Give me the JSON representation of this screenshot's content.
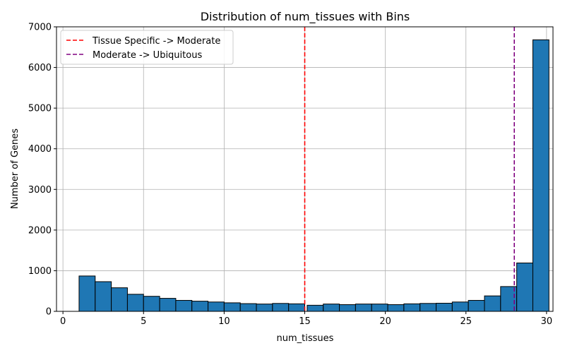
{
  "chart_data": {
    "type": "bar",
    "title": "Distribution of num_tissues with Bins",
    "xlabel": "num_tissues",
    "ylabel": "Number of Genes",
    "xlim": [
      -0.4,
      30.4
    ],
    "ylim": [
      0,
      7000
    ],
    "xticks": [
      0,
      5,
      10,
      15,
      20,
      25,
      30
    ],
    "yticks": [
      0,
      1000,
      2000,
      3000,
      4000,
      5000,
      6000,
      7000
    ],
    "grid": true,
    "legend_position": "upper-left",
    "bar_color": "#1f77b4",
    "bins": [
      {
        "x0": 1,
        "x1": 2,
        "value": 870
      },
      {
        "x0": 2,
        "x1": 3,
        "value": 730
      },
      {
        "x0": 3,
        "x1": 4,
        "value": 580
      },
      {
        "x0": 4,
        "x1": 5,
        "value": 420
      },
      {
        "x0": 5,
        "x1": 6,
        "value": 370
      },
      {
        "x0": 6,
        "x1": 7,
        "value": 320
      },
      {
        "x0": 7,
        "x1": 8,
        "value": 270
      },
      {
        "x0": 8,
        "x1": 9,
        "value": 250
      },
      {
        "x0": 9,
        "x1": 10,
        "value": 230
      },
      {
        "x0": 10,
        "x1": 11,
        "value": 210
      },
      {
        "x0": 11,
        "x1": 12,
        "value": 190
      },
      {
        "x0": 12,
        "x1": 13,
        "value": 180
      },
      {
        "x0": 13,
        "x1": 14,
        "value": 195
      },
      {
        "x0": 14,
        "x1": 15,
        "value": 185
      },
      {
        "x0": 15.15,
        "x1": 16.15,
        "value": 150
      },
      {
        "x0": 16.15,
        "x1": 17.15,
        "value": 180
      },
      {
        "x0": 17.15,
        "x1": 18.15,
        "value": 165
      },
      {
        "x0": 18.15,
        "x1": 19.15,
        "value": 180
      },
      {
        "x0": 19.15,
        "x1": 20.15,
        "value": 180
      },
      {
        "x0": 20.15,
        "x1": 21.15,
        "value": 165
      },
      {
        "x0": 21.15,
        "x1": 22.15,
        "value": 185
      },
      {
        "x0": 22.15,
        "x1": 23.15,
        "value": 195
      },
      {
        "x0": 23.15,
        "x1": 24.15,
        "value": 200
      },
      {
        "x0": 24.15,
        "x1": 25.15,
        "value": 230
      },
      {
        "x0": 25.15,
        "x1": 26.15,
        "value": 270
      },
      {
        "x0": 26.15,
        "x1": 27.15,
        "value": 380
      },
      {
        "x0": 27.15,
        "x1": 28.15,
        "value": 610
      },
      {
        "x0": 28.15,
        "x1": 29.15,
        "value": 1190
      },
      {
        "x0": 29.15,
        "x1": 30.15,
        "value": 6680
      }
    ],
    "vlines": [
      {
        "x": 15,
        "color": "#ff0000",
        "label": "Tissue Specific -> Moderate"
      },
      {
        "x": 28,
        "color": "#800080",
        "label": "Moderate -> Ubiquitous"
      }
    ]
  }
}
